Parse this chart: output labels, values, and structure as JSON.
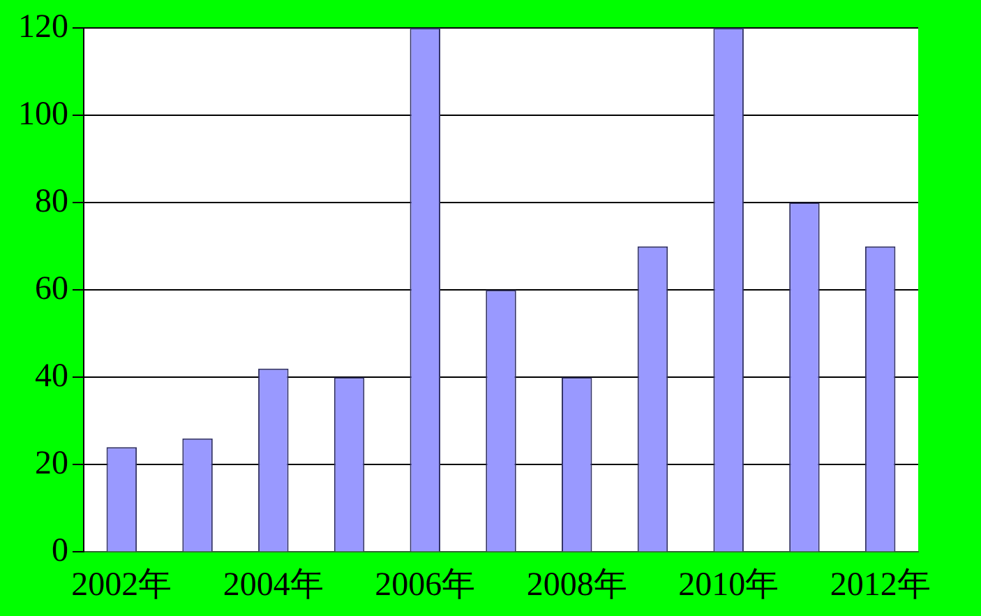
{
  "chart_data": {
    "type": "bar",
    "categories": [
      "2002年",
      null,
      "2004年",
      null,
      "2006年",
      null,
      "2008年",
      null,
      "2010年",
      null,
      "2012年"
    ],
    "values": [
      24,
      26,
      42,
      40,
      120,
      60,
      40,
      70,
      120,
      80,
      70
    ],
    "color": "#9999ff",
    "ylim": [
      0,
      120
    ],
    "yticks": [
      0,
      20,
      40,
      60,
      80,
      100,
      120
    ],
    "grid": "y",
    "legend": false
  }
}
